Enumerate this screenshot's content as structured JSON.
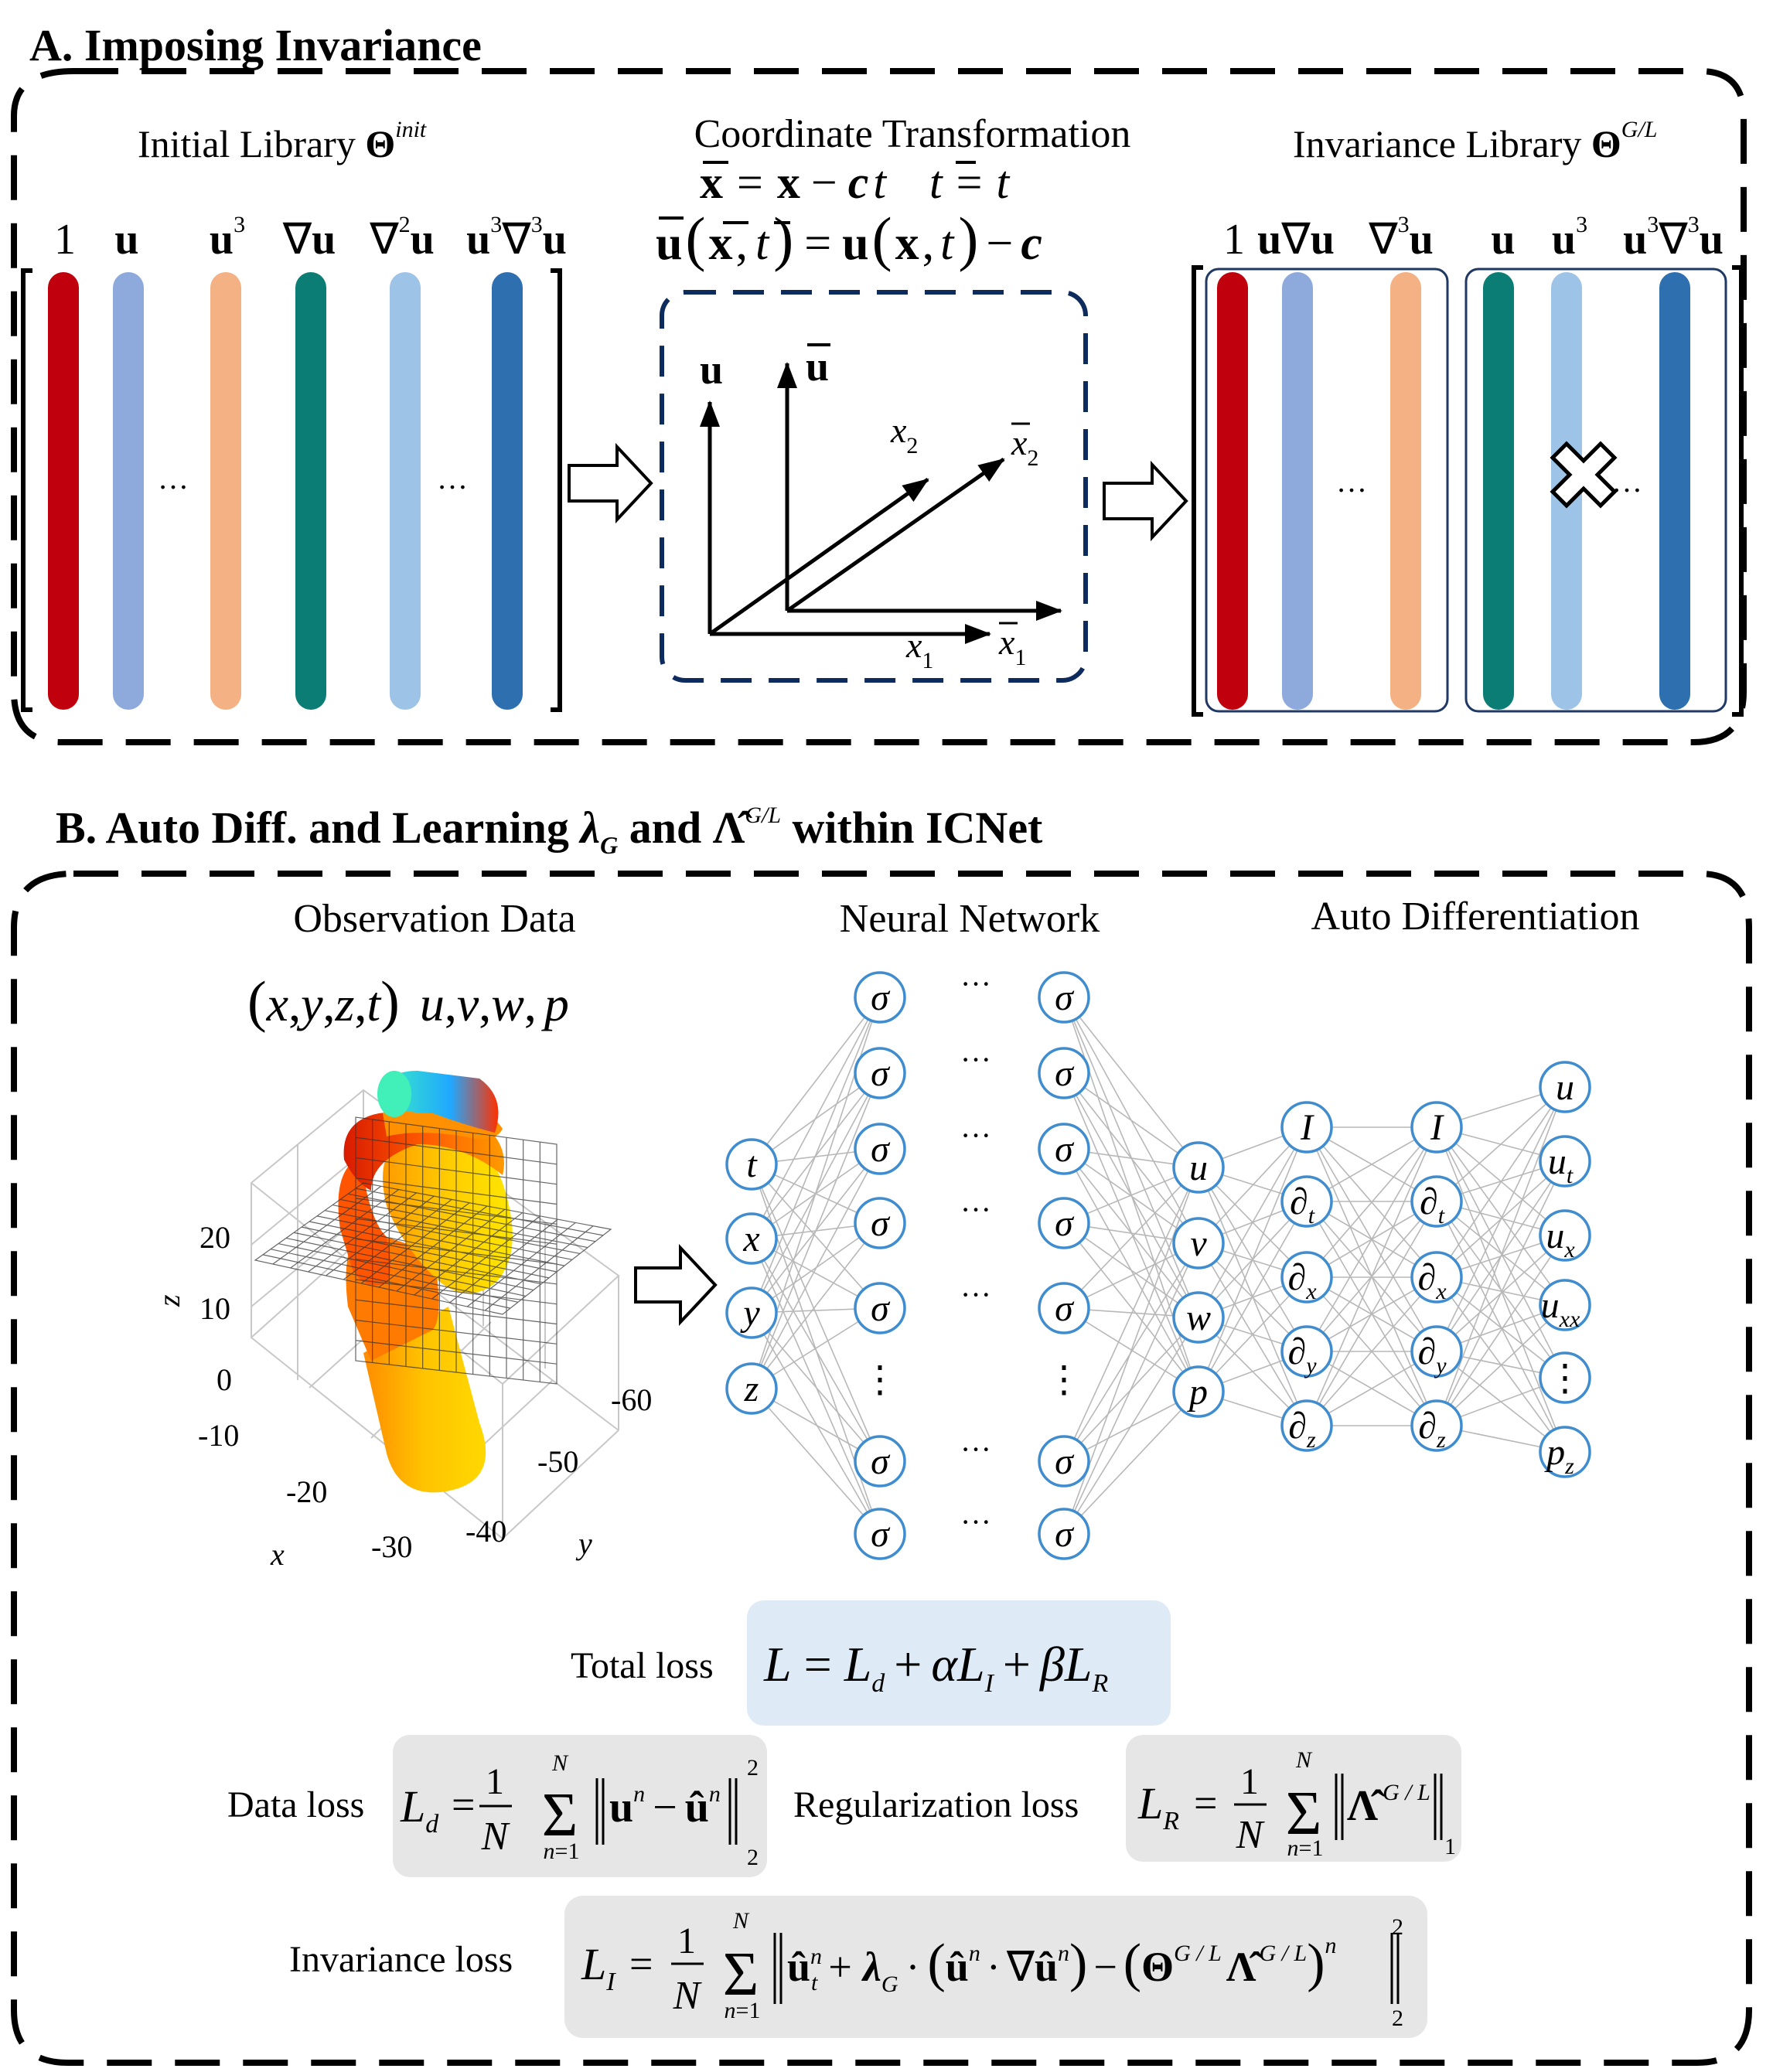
{
  "panel_a": {
    "heading": "A. Imposing Invariance",
    "initial": {
      "title": "Initial Library",
      "title_symbol": "Θ",
      "title_sup": "init",
      "columns": [
        "1",
        "u",
        "u³",
        "∇u",
        "∇²u",
        "u³∇³u"
      ],
      "dots": "…",
      "bar_colors": [
        "#c0000c",
        "#8ea9db",
        "#f4b183",
        "#0b7d74",
        "#9dc3e6",
        "#2e6fb0"
      ]
    },
    "transform": {
      "title": "Coordinate Transformation",
      "eq1": "x̄ = x − ct   t̄ = t",
      "eq2": "ū(x̄, t̄) = u(x, t) − c",
      "axis_u": "u",
      "axis_ubar": "ū",
      "x1": "x₁",
      "x2": "x₂",
      "x1bar": "x̄₁",
      "x2bar": "x̄₂"
    },
    "invariance": {
      "title": "Invariance Library",
      "title_symbol": "Θ",
      "title_sup": "G/L",
      "columns": [
        "1",
        "u∇u",
        "∇³u",
        "u",
        "u³",
        "u³∇³u"
      ],
      "dots": "…"
    }
  },
  "panel_b": {
    "heading_prefix": "B. Auto Diff. and Learning",
    "heading_lambda": "λ",
    "heading_lambda_sub": "G",
    "heading_and": "and",
    "heading_hat": "Λ̂",
    "heading_hat_sup": "G/L",
    "heading_suffix": "within  ICNet",
    "observation": {
      "title": "Observation Data",
      "vars": "(x, y, z, t)  u, v, w, p",
      "z_label": "z",
      "x_label": "x",
      "y_label": "y",
      "z_ticks": [
        "20",
        "10",
        "0"
      ],
      "x_ticks": [
        "-10",
        "-20",
        "-30"
      ],
      "y_ticks": [
        "-60",
        "-50",
        "-40"
      ]
    },
    "network": {
      "title": "Neural Network",
      "inputs": [
        "t",
        "x",
        "y",
        "z"
      ],
      "hidden_symbol": "σ",
      "dots": "···",
      "vdots": "⋮",
      "outputs": [
        "u",
        "v",
        "w",
        "p"
      ]
    },
    "autodiff": {
      "title": "Auto Differentiation",
      "operators": [
        "I",
        "∂t",
        "∂x",
        "∂y",
        "∂z"
      ],
      "final": [
        "u",
        "ut",
        "ux",
        "uxx",
        "⋮",
        "pz"
      ]
    },
    "losses": {
      "total_label": "Total loss",
      "total_eq": "L = Ld + αLI + βLR",
      "data_label": "Data loss",
      "data_eq": "Ld = (1/N) Σ ‖uⁿ − ûⁿ‖²₂",
      "reg_label": "Regularization loss",
      "reg_eq": "LR = (1/N) Σ ‖Λ̂^(G/L)‖₁",
      "inv_label": "Invariance loss",
      "inv_eq": "LI = (1/N) Σ ‖ûₜⁿ + λG·(ûⁿ·∇ûⁿ) − (Θ^(G/L) Λ̂^(G/L))ⁿ‖²₂",
      "total_bg": "#deebf7",
      "term_bg": "#e7e6e6"
    }
  }
}
